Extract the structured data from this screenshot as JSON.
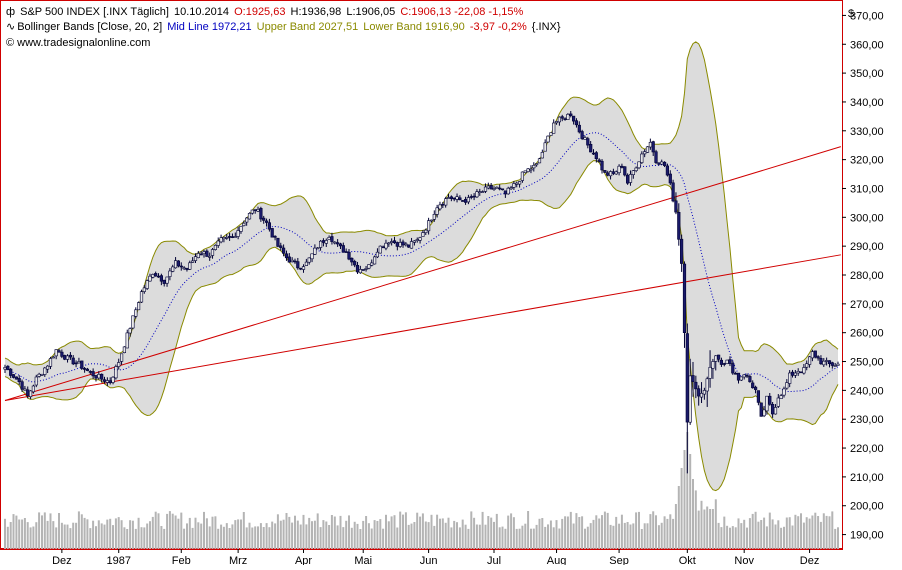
{
  "header": {
    "symbol_icon": "candlestick-icon",
    "instrument": "S&P 500 INDEX [.INX  Täglich]",
    "date": "10.10.2014",
    "open": "O:1925,63",
    "high": "H:1936,98",
    "low": "L:1906,05",
    "close_change": "C:1906,13 -22,08 -1,15%",
    "indicator_icon": "wave-icon",
    "indicator_name": "Bollinger Bands [Close, 20, 2]",
    "mid_line": "Mid Line 1972,21",
    "upper_band": "Upper Band 2027,51",
    "lower_band": "Lower Band 1916,90",
    "ind_change": "-3,97 -0,2%",
    "ind_symbol": "{.INX}",
    "copyright": "© www.tradesignalonline.com"
  },
  "colors": {
    "up_candle": "#e8e8e8",
    "down_candle": "#1a1a6a",
    "band_fill": "#dcdcdc",
    "band_line": "#8a8a00",
    "mid_line": "#0000c0",
    "trend_line": "#d00000",
    "volume": "#b4b4b4",
    "frame": "#d00000"
  },
  "chart_data": {
    "type": "candlestick",
    "currency_symbol": "$",
    "ylim": [
      185,
      375
    ],
    "y_ticks": [
      "190,00",
      "200,00",
      "210,00",
      "220,00",
      "230,00",
      "240,00",
      "250,00",
      "260,00",
      "270,00",
      "280,00",
      "290,00",
      "300,00",
      "310,00",
      "320,00",
      "330,00",
      "340,00",
      "350,00",
      "360,00",
      "370,00"
    ],
    "x_labels": [
      "Dez",
      "1987",
      "Feb",
      "Mrz",
      "Apr",
      "Mai",
      "Jun",
      "Jul",
      "Aug",
      "Sep",
      "Okt",
      "Nov",
      "Dez"
    ],
    "x_label_days": [
      20,
      40,
      62,
      82,
      105,
      126,
      149,
      172,
      194,
      216,
      240,
      260,
      283
    ],
    "total_days": 294,
    "price_anchors": [
      [
        0,
        248
      ],
      [
        5,
        243
      ],
      [
        8,
        238
      ],
      [
        11,
        244
      ],
      [
        15,
        249
      ],
      [
        18,
        254
      ],
      [
        22,
        251
      ],
      [
        26,
        249
      ],
      [
        30,
        246
      ],
      [
        34,
        244
      ],
      [
        37,
        243
      ],
      [
        40,
        250
      ],
      [
        44,
        262
      ],
      [
        48,
        274
      ],
      [
        52,
        281
      ],
      [
        56,
        278
      ],
      [
        60,
        284
      ],
      [
        64,
        282
      ],
      [
        68,
        288
      ],
      [
        72,
        287
      ],
      [
        76,
        292
      ],
      [
        80,
        293
      ],
      [
        85,
        300
      ],
      [
        88,
        303
      ],
      [
        92,
        298
      ],
      [
        96,
        290
      ],
      [
        99,
        286
      ],
      [
        103,
        283
      ],
      [
        106,
        284
      ],
      [
        110,
        290
      ],
      [
        114,
        294
      ],
      [
        117,
        290
      ],
      [
        120,
        288
      ],
      [
        124,
        282
      ],
      [
        128,
        283
      ],
      [
        131,
        289
      ],
      [
        135,
        292
      ],
      [
        138,
        291
      ],
      [
        142,
        290
      ],
      [
        145,
        292
      ],
      [
        149,
        298
      ],
      [
        152,
        304
      ],
      [
        156,
        307
      ],
      [
        160,
        306
      ],
      [
        163,
        306
      ],
      [
        166,
        308
      ],
      [
        170,
        310
      ],
      [
        173,
        310
      ],
      [
        176,
        308
      ],
      [
        180,
        312
      ],
      [
        183,
        316
      ],
      [
        187,
        318
      ],
      [
        190,
        325
      ],
      [
        193,
        333
      ],
      [
        196,
        334
      ],
      [
        199,
        336
      ],
      [
        202,
        330
      ],
      [
        205,
        325
      ],
      [
        208,
        321
      ],
      [
        211,
        315
      ],
      [
        214,
        315
      ],
      [
        217,
        318
      ],
      [
        219,
        312
      ],
      [
        222,
        318
      ],
      [
        224,
        322
      ],
      [
        227,
        326
      ],
      [
        229,
        320
      ],
      [
        232,
        318
      ],
      [
        234,
        311
      ],
      [
        236,
        302
      ],
      [
        238,
        284
      ],
      [
        239,
        260
      ],
      [
        240,
        229
      ],
      [
        241,
        245
      ],
      [
        242,
        243
      ],
      [
        244,
        238
      ],
      [
        246,
        240
      ],
      [
        248,
        248
      ],
      [
        250,
        252
      ],
      [
        252,
        250
      ],
      [
        254,
        250
      ],
      [
        256,
        247
      ],
      [
        258,
        244
      ],
      [
        260,
        246
      ],
      [
        262,
        243
      ],
      [
        264,
        240
      ],
      [
        266,
        230
      ],
      [
        268,
        237
      ],
      [
        270,
        232
      ],
      [
        272,
        238
      ],
      [
        274,
        240
      ],
      [
        276,
        245
      ],
      [
        279,
        247
      ],
      [
        281,
        247
      ],
      [
        284,
        253
      ],
      [
        287,
        250
      ],
      [
        290,
        249
      ],
      [
        293,
        249
      ]
    ],
    "volume_level": "low until October, spike in mid-October",
    "trend_lines": [
      {
        "start": [
          0,
          236.5
        ],
        "end": [
          294,
          324.5
        ]
      },
      {
        "start": [
          0,
          236.5
        ],
        "end": [
          294,
          287
        ]
      }
    ],
    "bollinger": {
      "period": 20,
      "std_dev": 2
    }
  }
}
